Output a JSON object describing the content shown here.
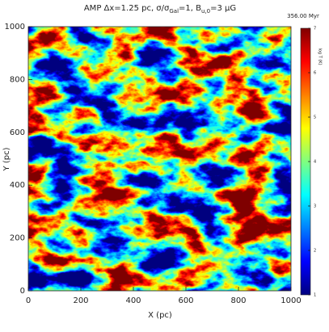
{
  "chart_data": {
    "type": "heatmap",
    "title": [
      "AMP Δx=1.25 pc, σ/σ",
      "Gal",
      "=1, B",
      "u,0",
      "=3 μG"
    ],
    "time_label": "356.00 Myr",
    "colorbar_label": "log T (K)",
    "x_label": "X (pc)",
    "y_label": "Y (pc)",
    "xlim": [
      0,
      1000
    ],
    "xticks": [
      0,
      200,
      400,
      600,
      800,
      1000
    ],
    "ylim": [
      0,
      1000
    ],
    "yticks": [
      0,
      200,
      400,
      600,
      800,
      1000
    ],
    "clim": [
      1,
      7
    ],
    "cticks": [
      1,
      2,
      3,
      4,
      5,
      6,
      7
    ],
    "colormap": "jet"
  }
}
